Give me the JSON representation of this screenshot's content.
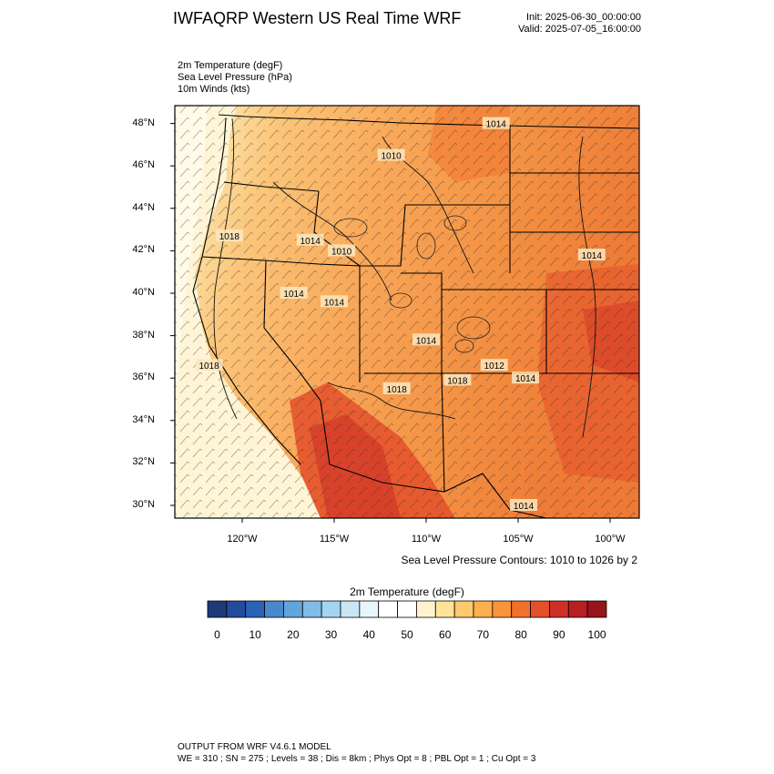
{
  "header": {
    "title": "IWFAQRP Western US Real Time WRF",
    "init": "Init: 2025-06-30_00:00:00",
    "valid": "Valid: 2025-07-05_16:00:00"
  },
  "fields": [
    {
      "label": "2m Temperature   (degF)"
    },
    {
      "label": "Sea Level Pressure   (hPa)"
    },
    {
      "label": "10m Winds   (kts)"
    }
  ],
  "axes": {
    "lat_ticks": [
      "48°N",
      "46°N",
      "44°N",
      "42°N",
      "40°N",
      "38°N",
      "36°N",
      "34°N",
      "32°N",
      "30°N"
    ],
    "lon_ticks": [
      "120°W",
      "115°W",
      "110°W",
      "105°W",
      "100°W"
    ]
  },
  "pressure_labels": [
    {
      "text": "1014",
      "lon": -106.2,
      "lat": 48.0
    },
    {
      "text": "1010",
      "lon": -111.9,
      "lat": 46.5
    },
    {
      "text": "1018",
      "lon": -120.7,
      "lat": 42.7
    },
    {
      "text": "1014",
      "lon": -116.3,
      "lat": 42.5
    },
    {
      "text": "1010",
      "lon": -114.6,
      "lat": 42.0
    },
    {
      "text": "1014",
      "lon": -101.0,
      "lat": 41.8
    },
    {
      "text": "1014",
      "lon": -117.2,
      "lat": 40.0
    },
    {
      "text": "1014",
      "lon": -115.0,
      "lat": 39.6
    },
    {
      "text": "1014",
      "lon": -110.0,
      "lat": 37.8
    },
    {
      "text": "1012",
      "lon": -106.3,
      "lat": 36.6
    },
    {
      "text": "1018",
      "lon": -121.8,
      "lat": 36.6
    },
    {
      "text": "1018",
      "lon": -111.6,
      "lat": 35.5
    },
    {
      "text": "1018",
      "lon": -108.3,
      "lat": 35.9
    },
    {
      "text": "1014",
      "lon": -104.6,
      "lat": 36.0
    },
    {
      "text": "1014",
      "lon": -104.7,
      "lat": 30.0
    }
  ],
  "contour_note": "Sea Level Pressure Contours: 1010 to 1026 by 2",
  "colorbar": {
    "title": "2m Temperature  (degF)",
    "colors": [
      "#1d3a7a",
      "#224c9b",
      "#2c62b6",
      "#4889cc",
      "#62a5db",
      "#80bce7",
      "#a5d4f2",
      "#c9e6f7",
      "#e8f5fb",
      "#ffffff",
      "#ffffff",
      "#fff3cf",
      "#fee49a",
      "#fdc96c",
      "#fdb04c",
      "#fa9438",
      "#f1712c",
      "#e4502a",
      "#cf3026",
      "#b81e22",
      "#95161c"
    ],
    "labels": [
      "0",
      "10",
      "20",
      "30",
      "40",
      "50",
      "60",
      "70",
      "80",
      "90",
      "100"
    ]
  },
  "footer": {
    "line1": "OUTPUT FROM WRF V4.6.1 MODEL",
    "line2": "WE = 310 ; SN = 275 ; Levels = 38 ; Dis = 8km ; Phys Opt = 8 ; PBL Opt = 1 ; Cu Opt = 3"
  }
}
